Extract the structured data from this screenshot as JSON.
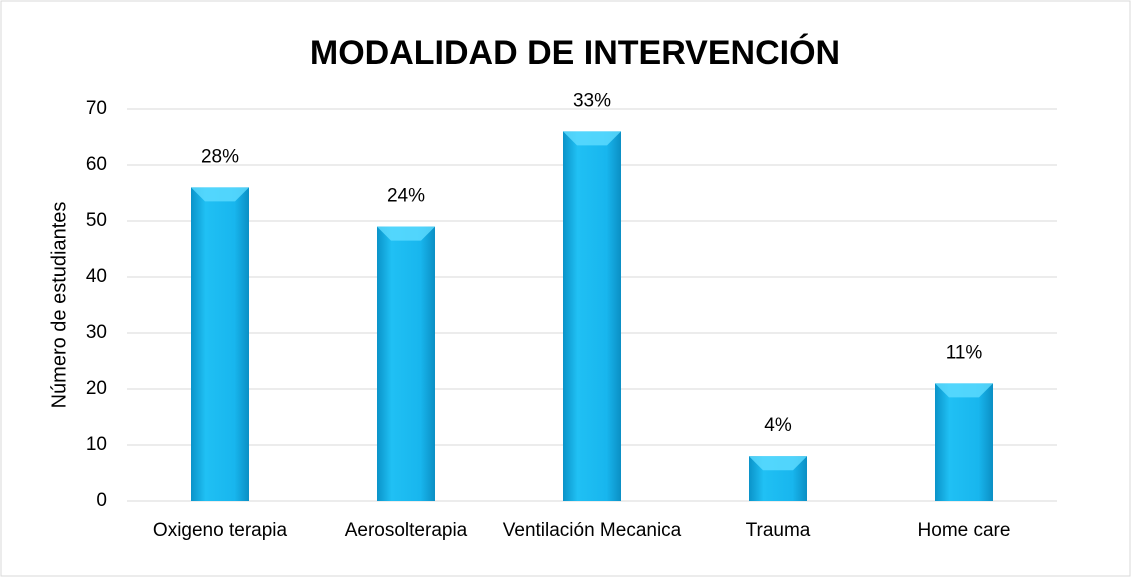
{
  "chart_data": {
    "type": "bar",
    "title": "MODALIDAD DE INTERVENCIÓN",
    "y_label": "Número de estudiantes",
    "categories": [
      "Oxigeno terapia",
      "Aerosolterapia",
      "Ventilación Mecanica",
      "Trauma",
      "Home care"
    ],
    "values": [
      56,
      49,
      66,
      8,
      21
    ],
    "value_labels": [
      "28%",
      "24%",
      "33%",
      "4%",
      "11%"
    ],
    "color": "#14b4ec",
    "ylim": [
      0,
      70
    ],
    "yticks": [
      0,
      10,
      20,
      30,
      40,
      50,
      60,
      70
    ],
    "grid": true
  }
}
